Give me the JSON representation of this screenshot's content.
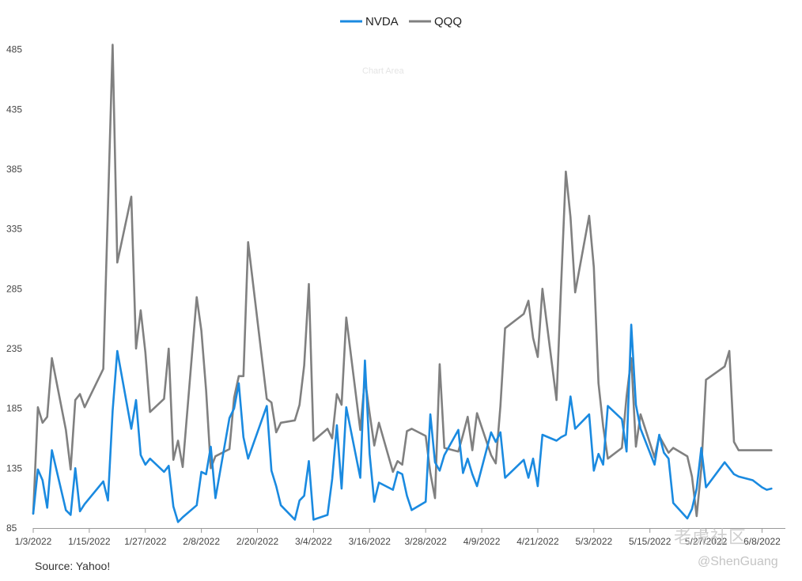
{
  "colors": {
    "nvda": "#1a8ae0",
    "qqq": "#808080",
    "axis": "#9a9a9a"
  },
  "source": "Source: Yahoo!",
  "watermark": {
    "area_label": "Chart Area",
    "main": "老虎社区",
    "handle": "@ShenGuang"
  },
  "chart_data": {
    "type": "line",
    "title": "",
    "xlabel": "",
    "ylabel": "",
    "ylim": [
      85,
      500
    ],
    "yticks": [
      85,
      135,
      185,
      235,
      285,
      335,
      385,
      435,
      485
    ],
    "x": [
      "1/3/2022",
      "1/4/2022",
      "1/5/2022",
      "1/6/2022",
      "1/7/2022",
      "1/10/2022",
      "1/11/2022",
      "1/12/2022",
      "1/13/2022",
      "1/14/2022",
      "1/18/2022",
      "1/19/2022",
      "1/20/2022",
      "1/21/2022",
      "1/24/2022",
      "1/25/2022",
      "1/26/2022",
      "1/27/2022",
      "1/28/2022",
      "1/31/2022",
      "2/1/2022",
      "2/2/2022",
      "2/3/2022",
      "2/4/2022",
      "2/7/2022",
      "2/8/2022",
      "2/9/2022",
      "2/10/2022",
      "2/11/2022",
      "2/14/2022",
      "2/15/2022",
      "2/16/2022",
      "2/17/2022",
      "2/18/2022",
      "2/22/2022",
      "2/23/2022",
      "2/24/2022",
      "2/25/2022",
      "2/28/2022",
      "3/1/2022",
      "3/2/2022",
      "3/3/2022",
      "3/4/2022",
      "3/7/2022",
      "3/8/2022",
      "3/9/2022",
      "3/10/2022",
      "3/11/2022",
      "3/14/2022",
      "3/15/2022",
      "3/16/2022",
      "3/17/2022",
      "3/18/2022",
      "3/21/2022",
      "3/22/2022",
      "3/23/2022",
      "3/24/2022",
      "3/25/2022",
      "3/28/2022",
      "3/29/2022",
      "3/30/2022",
      "3/31/2022",
      "4/1/2022",
      "4/4/2022",
      "4/5/2022",
      "4/6/2022",
      "4/7/2022",
      "4/8/2022",
      "4/11/2022",
      "4/12/2022",
      "4/13/2022",
      "4/14/2022",
      "4/18/2022",
      "4/19/2022",
      "4/20/2022",
      "4/21/2022",
      "4/22/2022",
      "4/25/2022",
      "4/26/2022",
      "4/27/2022",
      "4/28/2022",
      "4/29/2022",
      "5/2/2022",
      "5/3/2022",
      "5/4/2022",
      "5/5/2022",
      "5/6/2022",
      "5/9/2022",
      "5/10/2022",
      "5/11/2022",
      "5/12/2022",
      "5/13/2022",
      "5/16/2022",
      "5/17/2022",
      "5/18/2022",
      "5/19/2022",
      "5/20/2022",
      "5/23/2022",
      "5/24/2022",
      "5/25/2022",
      "5/26/2022",
      "5/27/2022",
      "5/31/2022",
      "6/1/2022",
      "6/2/2022",
      "6/3/2022",
      "6/6/2022",
      "6/7/2022",
      "6/8/2022",
      "6/9/2022",
      "6/10/2022"
    ],
    "x_tick_labels": [
      "1/3/2022",
      "1/15/2022",
      "1/27/2022",
      "2/8/2022",
      "2/20/2022",
      "3/4/2022",
      "3/16/2022",
      "3/28/2022",
      "4/9/2022",
      "4/21/2022",
      "5/3/2022",
      "5/15/2022",
      "5/27/2022",
      "6/8/2022"
    ],
    "legend": {
      "position": "top-center"
    },
    "grid": false,
    "series": [
      {
        "name": "NVDA",
        "color": "#1a8ae0",
        "values": [
          97,
          134,
          125,
          102,
          150,
          100,
          96,
          135,
          99,
          105,
          124,
          108,
          183,
          233,
          168,
          192,
          146,
          138,
          143,
          132,
          137,
          103,
          90,
          94,
          104,
          132,
          130,
          153,
          110,
          177,
          185,
          206,
          161,
          143,
          187,
          133,
          120,
          104,
          92,
          108,
          112,
          141,
          92,
          96,
          126,
          171,
          118,
          186,
          127,
          225,
          147,
          107,
          123,
          117,
          132,
          130,
          112,
          100,
          107,
          180,
          140,
          133,
          146,
          167,
          131,
          143,
          130,
          120,
          165,
          157,
          165,
          127,
          142,
          127,
          143,
          120,
          163,
          158,
          161,
          163,
          195,
          168,
          180,
          133,
          147,
          138,
          187,
          176,
          149,
          255,
          188,
          168,
          138,
          163,
          148,
          143,
          106,
          93,
          101,
          118,
          152,
          119,
          140,
          135,
          130,
          128,
          125,
          122,
          119,
          117,
          118
        ],
        "values_note": ""
      },
      {
        "name": "QQQ",
        "color": "#808080",
        "values": [
          97,
          186,
          173,
          178,
          227,
          167,
          134,
          192,
          197,
          186,
          218,
          353,
          489,
          307,
          362,
          235,
          267,
          232,
          182,
          193,
          235,
          142,
          158,
          136,
          278,
          250,
          200,
          135,
          145,
          151,
          194,
          212,
          212,
          324,
          193,
          190,
          165,
          173,
          175,
          188,
          221,
          289,
          158,
          168,
          160,
          197,
          188,
          261,
          167,
          210,
          181,
          154,
          173,
          132,
          141,
          138,
          166,
          168,
          162,
          131,
          110,
          222,
          152,
          149,
          163,
          178,
          150,
          181,
          146,
          139,
          187,
          252,
          264,
          275,
          244,
          228,
          285,
          192,
          289,
          383,
          345,
          282,
          346,
          303,
          206,
          170,
          143,
          152,
          195,
          227,
          153,
          180,
          144,
          162,
          155,
          148,
          152,
          145,
          128,
          95,
          135,
          209,
          220,
          233,
          157,
          150,
          150,
          150,
          150,
          150,
          150
        ],
        "values_note": ""
      }
    ]
  }
}
